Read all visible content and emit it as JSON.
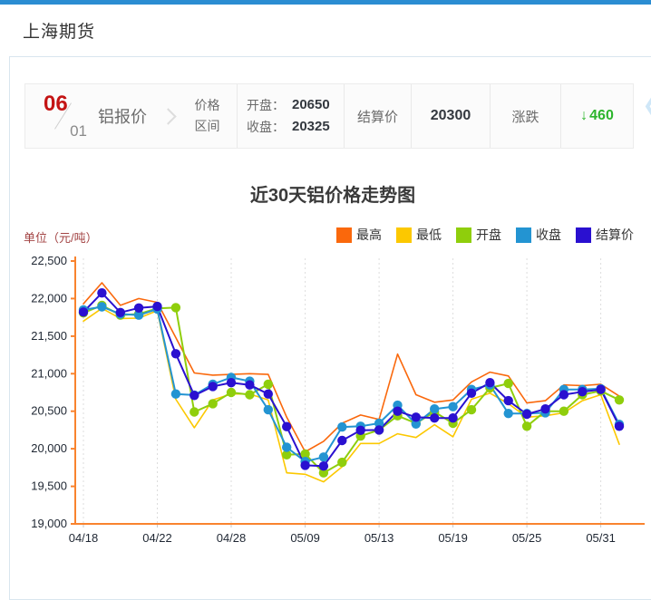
{
  "page": {
    "title": "上海期货"
  },
  "quote_bar": {
    "month": "06",
    "day": "01",
    "product_name": "铝报价",
    "range_label_line1": "价格",
    "range_label_line2": "区间",
    "open_label": "开盘：",
    "open_value": "20650",
    "close_label": "收盘：",
    "close_value": "20325",
    "settle_label": "结算价",
    "settle_value": "20300",
    "change_label": "涨跌",
    "change_arrow": "↓",
    "change_value": "460",
    "change_color": "#2db52d",
    "carousel_prev_icon": "❮"
  },
  "chart_data": {
    "type": "line",
    "title": "近30天铝价格走势图",
    "unit_label": "单位（元/吨）",
    "x": [
      "04/18",
      "04/19",
      "04/20",
      "04/21",
      "04/22",
      "04/25",
      "04/26",
      "04/27",
      "04/28",
      "04/29",
      "05/05",
      "05/06",
      "05/09",
      "05/10",
      "05/11",
      "05/12",
      "05/13",
      "05/16",
      "05/17",
      "05/18",
      "05/19",
      "05/20",
      "05/23",
      "05/24",
      "05/25",
      "05/26",
      "05/27",
      "05/30",
      "05/31",
      "06/01"
    ],
    "x_tick_indices": [
      0,
      4,
      8,
      12,
      16,
      20,
      24,
      28
    ],
    "x_tick_labels": [
      "04/18",
      "04/22",
      "04/28",
      "05/09",
      "05/13",
      "05/19",
      "05/25",
      "05/31"
    ],
    "ylim": [
      19000,
      22500
    ],
    "y_ticks": [
      19000,
      19500,
      20000,
      20500,
      21000,
      21500,
      22000,
      22500
    ],
    "grid": "vertical-dashed",
    "legend_position": "top-right",
    "axis_color": "#f9832e",
    "series": [
      {
        "name": "最高",
        "color": "#fa680c",
        "marker": false,
        "values": [
          21930,
          22210,
          21910,
          22000,
          21950,
          21480,
          21010,
          20980,
          20990,
          21000,
          20990,
          20420,
          19960,
          20100,
          20340,
          20450,
          20390,
          21260,
          20720,
          20620,
          20650,
          20890,
          21020,
          20970,
          20610,
          20640,
          20850,
          20840,
          20860,
          20700
        ]
      },
      {
        "name": "最低",
        "color": "#fcc800",
        "marker": false,
        "values": [
          21700,
          21870,
          21735,
          21740,
          21840,
          20660,
          20280,
          20650,
          20730,
          20730,
          20650,
          19680,
          19660,
          19560,
          19760,
          20070,
          20070,
          20200,
          20150,
          20320,
          20160,
          20660,
          20740,
          20600,
          20420,
          20440,
          20480,
          20640,
          20720,
          20060
        ]
      },
      {
        "name": "开盘",
        "color": "#8fce0c",
        "marker": true,
        "values": [
          21810,
          21910,
          21780,
          21795,
          21870,
          21880,
          20490,
          20600,
          20750,
          20720,
          20860,
          19920,
          19930,
          19680,
          19820,
          20170,
          20250,
          20440,
          20340,
          20490,
          20340,
          20520,
          20810,
          20870,
          20300,
          20500,
          20500,
          20720,
          20770,
          20650
        ]
      },
      {
        "name": "收盘",
        "color": "#2394d2",
        "marker": true,
        "values": [
          21850,
          21890,
          21795,
          21780,
          21860,
          20730,
          20715,
          20860,
          20950,
          20900,
          20520,
          20020,
          19830,
          19890,
          20290,
          20300,
          20340,
          20580,
          20330,
          20530,
          20560,
          20790,
          20850,
          20470,
          20470,
          20480,
          20790,
          20790,
          20800,
          20325
        ]
      },
      {
        "name": "结算价",
        "color": "#2a10d0",
        "marker": true,
        "values": [
          21820,
          22075,
          21815,
          21875,
          21895,
          21265,
          20710,
          20830,
          20880,
          20850,
          20730,
          20295,
          19780,
          19770,
          20110,
          20245,
          20250,
          20500,
          20420,
          20410,
          20410,
          20740,
          20880,
          20640,
          20460,
          20530,
          20720,
          20760,
          20790,
          20300
        ]
      }
    ]
  }
}
